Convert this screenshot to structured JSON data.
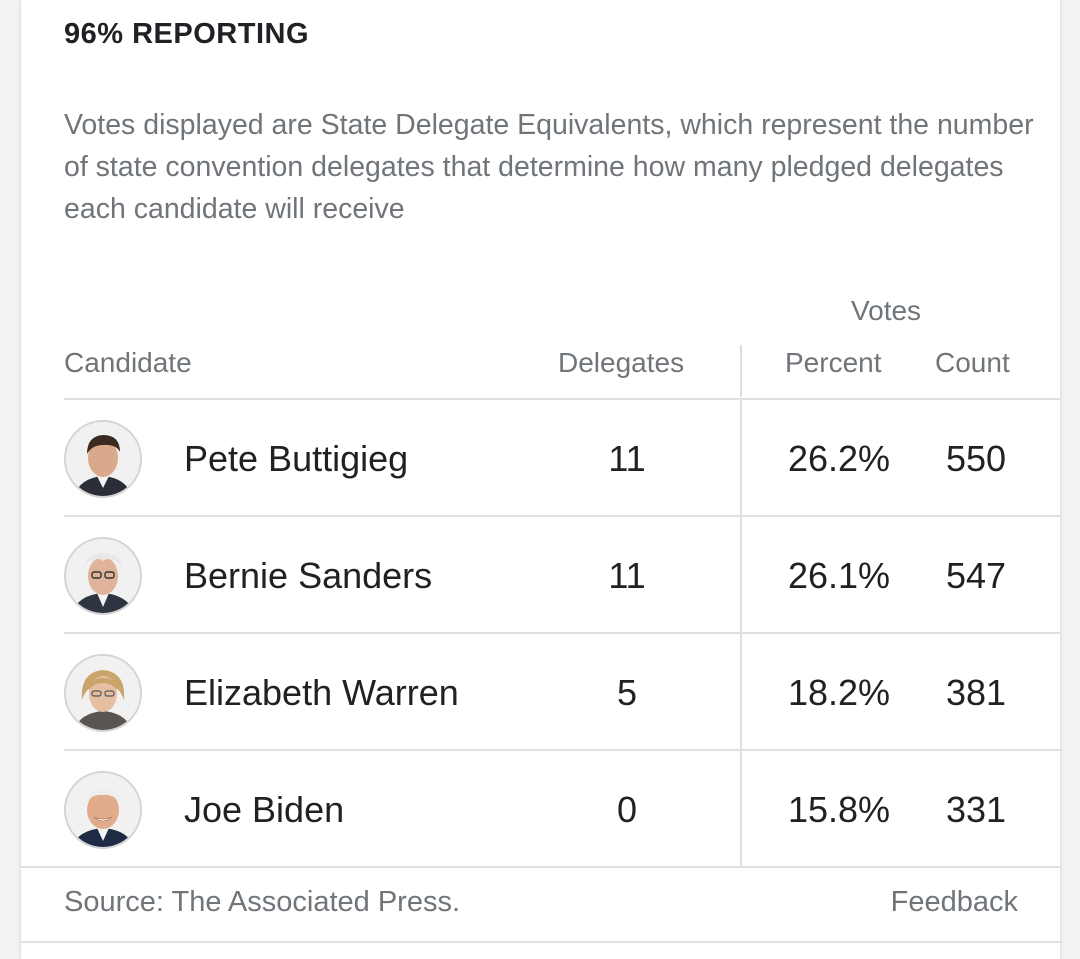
{
  "reporting": "96% REPORTING",
  "description": "Votes displayed are State Delegate Equivalents, which represent the number of state convention delegates that determine how many pledged delegates each candidate will receive",
  "table": {
    "headers": {
      "votes_group": "Votes",
      "candidate": "Candidate",
      "delegates": "Delegates",
      "percent": "Percent",
      "count": "Count"
    },
    "rows": [
      {
        "name": "Pete Buttigieg",
        "delegates": "11",
        "percent": "26.2%",
        "count": "550",
        "avatar": "pete-buttigieg-photo"
      },
      {
        "name": "Bernie Sanders",
        "delegates": "11",
        "percent": "26.1%",
        "count": "547",
        "avatar": "bernie-sanders-photo"
      },
      {
        "name": "Elizabeth Warren",
        "delegates": "5",
        "percent": "18.2%",
        "count": "381",
        "avatar": "elizabeth-warren-photo"
      },
      {
        "name": "Joe Biden",
        "delegates": "0",
        "percent": "15.8%",
        "count": "331",
        "avatar": "joe-biden-photo"
      }
    ]
  },
  "footer": {
    "source": "Source: The Associated Press.",
    "feedback": "Feedback"
  }
}
